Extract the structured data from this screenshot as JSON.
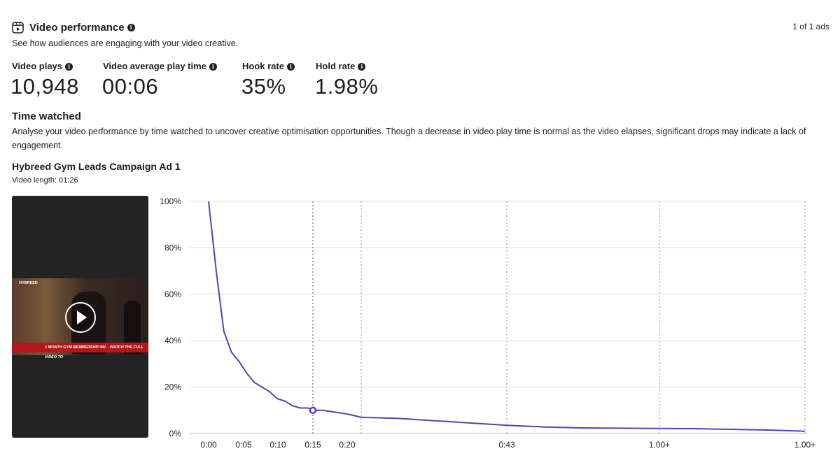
{
  "header": {
    "title": "Video performance",
    "subtitle": "See how audiences are engaging with your video creative.",
    "pager": "1 of 1 ads"
  },
  "metrics": [
    {
      "label": "Video plays",
      "value": "10,948"
    },
    {
      "label": "Video average play time",
      "value": "00:06"
    },
    {
      "label": "Hook rate",
      "value": "35%"
    },
    {
      "label": "Hold rate",
      "value": "1.98%"
    }
  ],
  "time_watched": {
    "title": "Time watched",
    "description": "Analyse your video performance by time watched to uncover creative optimisation opportunities. Though a decrease in video play time is normal as the video elapses, significant drops may indicate a lack of engagement."
  },
  "ad": {
    "name": "Hybreed Gym Leads Campaign Ad 1",
    "video_length": "Video length: 01:26",
    "thumbnail_brand": "HYBREED",
    "thumbnail_banner": "1 MONTH GYM MEMBERSHIP 99/- . WATCH THE FULL VIDEO TO"
  },
  "colors": {
    "line": "#5b3fb5",
    "grid": "#dadde1",
    "text": "#1c1e21"
  },
  "icons": {
    "reel": "reel-icon",
    "info": "info-icon",
    "play": "play-icon"
  },
  "chart_data": {
    "type": "line",
    "title": "",
    "xlabel": "",
    "ylabel": "",
    "ylim": [
      0,
      100
    ],
    "y_ticks": [
      "100%",
      "80%",
      "60%",
      "40%",
      "20%",
      "0%"
    ],
    "x_ticks": [
      "0:00",
      "0:05",
      "0:10",
      "0:15",
      "0:20",
      "0:43",
      "1.00+",
      "1.00+"
    ],
    "x": [
      0,
      1,
      2,
      3,
      4,
      5,
      6,
      7,
      8,
      9,
      10,
      11,
      12,
      13,
      14,
      15,
      16,
      17,
      18,
      19,
      20,
      21,
      22,
      23,
      24,
      25,
      26,
      27,
      28,
      29,
      30,
      31,
      32
    ],
    "values": [
      100,
      70,
      44,
      35,
      31,
      26,
      22,
      20,
      18,
      15,
      14,
      12,
      11,
      11,
      10,
      10,
      9.5,
      9,
      8.5,
      7.8,
      7,
      6.5,
      5.5,
      4.5,
      3.5,
      2.8,
      2.4,
      2.3,
      2.2,
      2.1,
      1.8,
      1.5,
      1.0
    ],
    "highlight": {
      "x_label": "0:15",
      "value": 10
    },
    "grid": true
  }
}
